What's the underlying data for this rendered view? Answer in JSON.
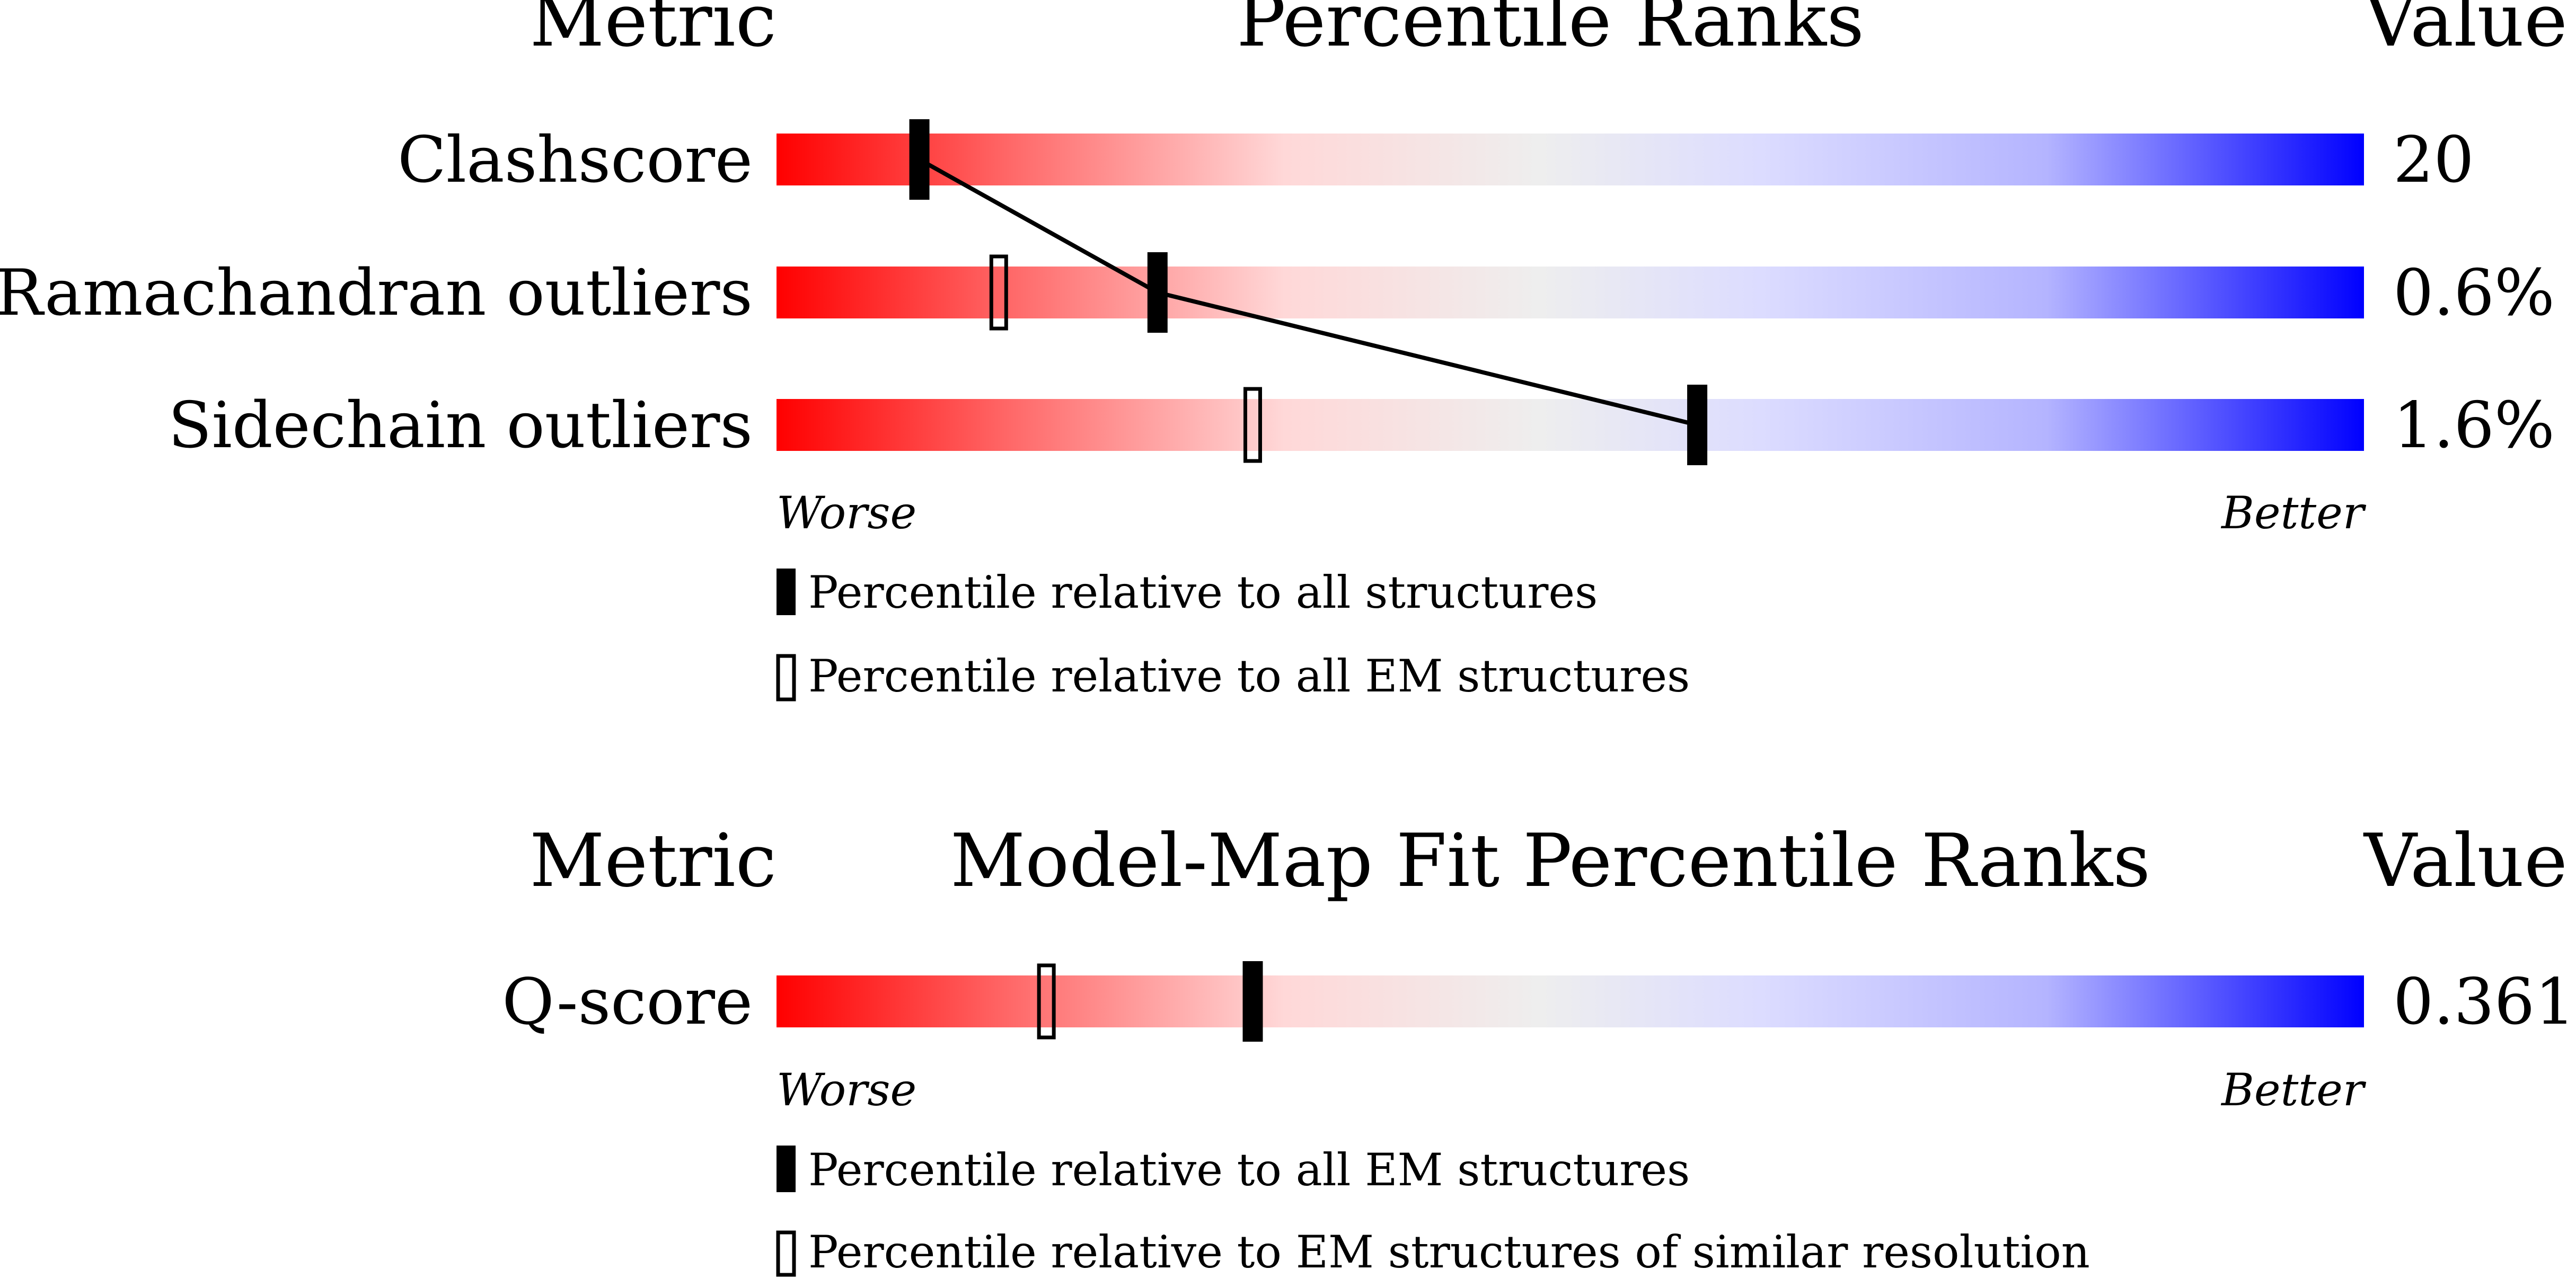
{
  "chart_data": [
    {
      "type": "bar",
      "headers": {
        "metric": "Metric",
        "title": "Percentile Ranks",
        "value": "Value"
      },
      "axis_ends": {
        "worse": "Worse",
        "better": "Better"
      },
      "xlim": [
        0,
        100
      ],
      "rows": [
        {
          "metric": "Clashscore",
          "value": "20",
          "percentile_all": 9,
          "percentile_em": null
        },
        {
          "metric": "Ramachandran outliers",
          "value": "0.6%",
          "percentile_all": 24,
          "percentile_em": 14
        },
        {
          "metric": "Sidechain outliers",
          "value": "1.6%",
          "percentile_all": 58,
          "percentile_em": 30
        }
      ],
      "legend": [
        {
          "marker": "filled",
          "label": "Percentile relative to all structures"
        },
        {
          "marker": "hollow",
          "label": "Percentile relative to all EM structures"
        }
      ],
      "connect_filled_markers": true
    },
    {
      "type": "bar",
      "headers": {
        "metric": "Metric",
        "title": "Model-Map Fit Percentile Ranks",
        "value": "Value"
      },
      "axis_ends": {
        "worse": "Worse",
        "better": "Better"
      },
      "xlim": [
        0,
        100
      ],
      "rows": [
        {
          "metric": "Q-score",
          "value": "0.361",
          "percentile_all": 30,
          "percentile_em": 17
        }
      ],
      "legend": [
        {
          "marker": "filled",
          "label": "Percentile relative to all EM structures"
        },
        {
          "marker": "hollow",
          "label": "Percentile relative to EM structures of similar resolution"
        }
      ],
      "connect_filled_markers": false
    }
  ],
  "colors": {
    "worse": "#ff0000",
    "mid": "#eeeeee",
    "better": "#0000ff",
    "marker": "#000000"
  }
}
